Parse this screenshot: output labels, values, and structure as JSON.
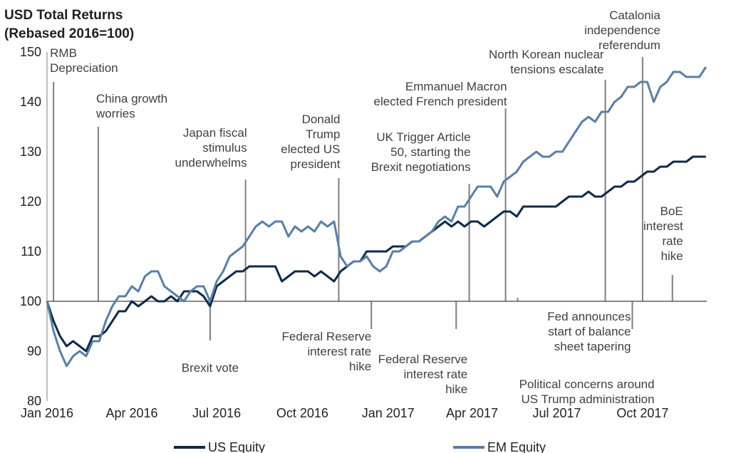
{
  "chart_data": {
    "type": "line",
    "title": "USD Total Returns",
    "subtitle": "(Rebased 2016=100)",
    "ylim": [
      80,
      150
    ],
    "yticks": [
      80,
      90,
      100,
      110,
      120,
      130,
      140,
      150
    ],
    "xlim": [
      "2016-01-01",
      "2017-12-15"
    ],
    "xticks": [
      {
        "date": "2016-01-01",
        "label": "Jan 2016"
      },
      {
        "date": "2016-04-01",
        "label": "Apr 2016"
      },
      {
        "date": "2016-07-01",
        "label": "Jul 2016"
      },
      {
        "date": "2016-10-01",
        "label": "Oct 2016"
      },
      {
        "date": "2017-01-01",
        "label": "Jan 2017"
      },
      {
        "date": "2017-04-01",
        "label": "Apr 2017"
      },
      {
        "date": "2017-07-01",
        "label": "Jul 2017"
      },
      {
        "date": "2017-10-01",
        "label": "Oct 2017"
      }
    ],
    "legend_position": "bottom",
    "series": [
      {
        "name": "US Equity",
        "color": "#0f2a4a",
        "points": [
          [
            "2016-01-01",
            100
          ],
          [
            "2016-01-08",
            96
          ],
          [
            "2016-01-15",
            93
          ],
          [
            "2016-01-22",
            91
          ],
          [
            "2016-01-29",
            92
          ],
          [
            "2016-02-05",
            91
          ],
          [
            "2016-02-12",
            90
          ],
          [
            "2016-02-19",
            93
          ],
          [
            "2016-02-26",
            93
          ],
          [
            "2016-03-04",
            94
          ],
          [
            "2016-03-11",
            96
          ],
          [
            "2016-03-18",
            98
          ],
          [
            "2016-03-25",
            98
          ],
          [
            "2016-04-01",
            100
          ],
          [
            "2016-04-08",
            99
          ],
          [
            "2016-04-15",
            100
          ],
          [
            "2016-04-22",
            101
          ],
          [
            "2016-04-29",
            100
          ],
          [
            "2016-05-06",
            100
          ],
          [
            "2016-05-13",
            101
          ],
          [
            "2016-05-20",
            100
          ],
          [
            "2016-05-27",
            102
          ],
          [
            "2016-06-03",
            102
          ],
          [
            "2016-06-10",
            102
          ],
          [
            "2016-06-17",
            101
          ],
          [
            "2016-06-24",
            99
          ],
          [
            "2016-07-01",
            103
          ],
          [
            "2016-07-08",
            104
          ],
          [
            "2016-07-15",
            105
          ],
          [
            "2016-07-22",
            106
          ],
          [
            "2016-07-29",
            106
          ],
          [
            "2016-08-05",
            107
          ],
          [
            "2016-08-12",
            107
          ],
          [
            "2016-08-19",
            107
          ],
          [
            "2016-08-26",
            107
          ],
          [
            "2016-09-02",
            107
          ],
          [
            "2016-09-09",
            104
          ],
          [
            "2016-09-16",
            105
          ],
          [
            "2016-09-23",
            106
          ],
          [
            "2016-09-30",
            106
          ],
          [
            "2016-10-07",
            106
          ],
          [
            "2016-10-14",
            105
          ],
          [
            "2016-10-21",
            106
          ],
          [
            "2016-10-28",
            105
          ],
          [
            "2016-11-04",
            104
          ],
          [
            "2016-11-11",
            106
          ],
          [
            "2016-11-18",
            107
          ],
          [
            "2016-11-25",
            108
          ],
          [
            "2016-12-02",
            108
          ],
          [
            "2016-12-09",
            110
          ],
          [
            "2016-12-16",
            110
          ],
          [
            "2016-12-23",
            110
          ],
          [
            "2016-12-30",
            110
          ],
          [
            "2017-01-06",
            111
          ],
          [
            "2017-01-13",
            111
          ],
          [
            "2017-01-20",
            111
          ],
          [
            "2017-01-27",
            112
          ],
          [
            "2017-02-03",
            112
          ],
          [
            "2017-02-10",
            113
          ],
          [
            "2017-02-17",
            114
          ],
          [
            "2017-02-24",
            115
          ],
          [
            "2017-03-03",
            116
          ],
          [
            "2017-03-10",
            115
          ],
          [
            "2017-03-17",
            116
          ],
          [
            "2017-03-24",
            115
          ],
          [
            "2017-03-31",
            116
          ],
          [
            "2017-04-07",
            116
          ],
          [
            "2017-04-14",
            115
          ],
          [
            "2017-04-21",
            116
          ],
          [
            "2017-04-28",
            117
          ],
          [
            "2017-05-05",
            118
          ],
          [
            "2017-05-12",
            118
          ],
          [
            "2017-05-19",
            117
          ],
          [
            "2017-05-26",
            119
          ],
          [
            "2017-06-02",
            119
          ],
          [
            "2017-06-09",
            119
          ],
          [
            "2017-06-16",
            119
          ],
          [
            "2017-06-23",
            119
          ],
          [
            "2017-06-30",
            119
          ],
          [
            "2017-07-07",
            120
          ],
          [
            "2017-07-14",
            121
          ],
          [
            "2017-07-21",
            121
          ],
          [
            "2017-07-28",
            121
          ],
          [
            "2017-08-04",
            122
          ],
          [
            "2017-08-11",
            121
          ],
          [
            "2017-08-18",
            121
          ],
          [
            "2017-08-25",
            122
          ],
          [
            "2017-09-01",
            123
          ],
          [
            "2017-09-08",
            123
          ],
          [
            "2017-09-15",
            124
          ],
          [
            "2017-09-22",
            124
          ],
          [
            "2017-09-29",
            125
          ],
          [
            "2017-10-06",
            126
          ],
          [
            "2017-10-13",
            126
          ],
          [
            "2017-10-20",
            127
          ],
          [
            "2017-10-27",
            127
          ],
          [
            "2017-11-03",
            128
          ],
          [
            "2017-11-10",
            128
          ],
          [
            "2017-11-17",
            128
          ],
          [
            "2017-11-24",
            129
          ],
          [
            "2017-12-01",
            129
          ],
          [
            "2017-12-08",
            129
          ]
        ]
      },
      {
        "name": "EM Equity",
        "color": "#5a7fa6",
        "points": [
          [
            "2016-01-01",
            100
          ],
          [
            "2016-01-08",
            94
          ],
          [
            "2016-01-15",
            90
          ],
          [
            "2016-01-22",
            87
          ],
          [
            "2016-01-29",
            89
          ],
          [
            "2016-02-05",
            90
          ],
          [
            "2016-02-12",
            89
          ],
          [
            "2016-02-19",
            92
          ],
          [
            "2016-02-26",
            92
          ],
          [
            "2016-03-04",
            96
          ],
          [
            "2016-03-11",
            99
          ],
          [
            "2016-03-18",
            101
          ],
          [
            "2016-03-25",
            101
          ],
          [
            "2016-04-01",
            103
          ],
          [
            "2016-04-08",
            102
          ],
          [
            "2016-04-15",
            105
          ],
          [
            "2016-04-22",
            106
          ],
          [
            "2016-04-29",
            106
          ],
          [
            "2016-05-06",
            103
          ],
          [
            "2016-05-13",
            102
          ],
          [
            "2016-05-20",
            101
          ],
          [
            "2016-05-27",
            100
          ],
          [
            "2016-06-03",
            102
          ],
          [
            "2016-06-10",
            103
          ],
          [
            "2016-06-17",
            103
          ],
          [
            "2016-06-24",
            100
          ],
          [
            "2016-07-01",
            104
          ],
          [
            "2016-07-08",
            106
          ],
          [
            "2016-07-15",
            109
          ],
          [
            "2016-07-22",
            110
          ],
          [
            "2016-07-29",
            111
          ],
          [
            "2016-08-05",
            113
          ],
          [
            "2016-08-12",
            115
          ],
          [
            "2016-08-19",
            116
          ],
          [
            "2016-08-26",
            115
          ],
          [
            "2016-09-02",
            116
          ],
          [
            "2016-09-09",
            116
          ],
          [
            "2016-09-16",
            113
          ],
          [
            "2016-09-23",
            115
          ],
          [
            "2016-09-30",
            114
          ],
          [
            "2016-10-07",
            115
          ],
          [
            "2016-10-14",
            114
          ],
          [
            "2016-10-21",
            116
          ],
          [
            "2016-10-28",
            115
          ],
          [
            "2016-11-04",
            116
          ],
          [
            "2016-11-11",
            109
          ],
          [
            "2016-11-18",
            107
          ],
          [
            "2016-11-25",
            108
          ],
          [
            "2016-12-02",
            108
          ],
          [
            "2016-12-09",
            109
          ],
          [
            "2016-12-16",
            107
          ],
          [
            "2016-12-23",
            106
          ],
          [
            "2016-12-30",
            107
          ],
          [
            "2017-01-06",
            110
          ],
          [
            "2017-01-13",
            110
          ],
          [
            "2017-01-20",
            111
          ],
          [
            "2017-01-27",
            112
          ],
          [
            "2017-02-03",
            112
          ],
          [
            "2017-02-10",
            113
          ],
          [
            "2017-02-17",
            114
          ],
          [
            "2017-02-24",
            116
          ],
          [
            "2017-03-03",
            117
          ],
          [
            "2017-03-10",
            116
          ],
          [
            "2017-03-17",
            119
          ],
          [
            "2017-03-24",
            119
          ],
          [
            "2017-03-31",
            121
          ],
          [
            "2017-04-07",
            123
          ],
          [
            "2017-04-14",
            123
          ],
          [
            "2017-04-21",
            123
          ],
          [
            "2017-04-28",
            121
          ],
          [
            "2017-05-05",
            124
          ],
          [
            "2017-05-12",
            125
          ],
          [
            "2017-05-19",
            126
          ],
          [
            "2017-05-26",
            128
          ],
          [
            "2017-06-02",
            129
          ],
          [
            "2017-06-09",
            130
          ],
          [
            "2017-06-16",
            129
          ],
          [
            "2017-06-23",
            129
          ],
          [
            "2017-06-30",
            130
          ],
          [
            "2017-07-07",
            130
          ],
          [
            "2017-07-14",
            132
          ],
          [
            "2017-07-21",
            134
          ],
          [
            "2017-07-28",
            136
          ],
          [
            "2017-08-04",
            137
          ],
          [
            "2017-08-11",
            136
          ],
          [
            "2017-08-18",
            138
          ],
          [
            "2017-08-25",
            138
          ],
          [
            "2017-09-01",
            140
          ],
          [
            "2017-09-08",
            141
          ],
          [
            "2017-09-15",
            143
          ],
          [
            "2017-09-22",
            143
          ],
          [
            "2017-09-29",
            144
          ],
          [
            "2017-10-06",
            144
          ],
          [
            "2017-10-13",
            140
          ],
          [
            "2017-10-20",
            143
          ],
          [
            "2017-10-27",
            144
          ],
          [
            "2017-11-03",
            146
          ],
          [
            "2017-11-10",
            146
          ],
          [
            "2017-11-17",
            145
          ],
          [
            "2017-11-24",
            145
          ],
          [
            "2017-12-01",
            145
          ],
          [
            "2017-12-08",
            147
          ]
        ]
      }
    ],
    "annotations": [
      {
        "date": "2016-01-08",
        "text": [
          "RMB",
          "Depreciation"
        ],
        "position": "above"
      },
      {
        "date": "2016-02-25",
        "text": [
          "China growth",
          "worries"
        ],
        "position": "above"
      },
      {
        "date": "2016-06-24",
        "text": [
          "Brexit vote"
        ],
        "position": "below"
      },
      {
        "date": "2016-08-01",
        "text": [
          "Japan fiscal",
          "stimulus",
          "underwhelms"
        ],
        "position": "above"
      },
      {
        "date": "2016-11-09",
        "text": [
          "Donald",
          "Trump",
          "elected US",
          "president"
        ],
        "position": "above"
      },
      {
        "date": "2016-12-14",
        "text": [
          "Federal Reserve",
          "interest rate",
          "hike"
        ],
        "position": "below"
      },
      {
        "date": "2017-03-15",
        "text": [
          "Federal Reserve",
          "interest rate",
          "hike"
        ],
        "position": "below"
      },
      {
        "date": "2017-03-29",
        "text": [
          "UK Trigger Article",
          "50, starting the",
          "Brexit negotiations"
        ],
        "position": "above"
      },
      {
        "date": "2017-05-07",
        "text": [
          "Emmanuel Macron",
          "elected French president"
        ],
        "position": "above"
      },
      {
        "date": "2017-05-20",
        "text": [
          "Political concerns around",
          "US Trump administration"
        ],
        "position": "below"
      },
      {
        "date": "2017-08-22",
        "text": [
          "North Korean nuclear",
          "tensions escalate"
        ],
        "position": "above"
      },
      {
        "date": "2017-09-20",
        "text": [
          "Fed announces",
          "start of balance",
          "sheet tapering"
        ],
        "position": "below"
      },
      {
        "date": "2017-10-01",
        "text": [
          "Catalonia",
          "independence",
          "referendum"
        ],
        "position": "above"
      },
      {
        "date": "2017-11-02",
        "text": [
          "BoE",
          "interest",
          "rate",
          "hike"
        ],
        "position": "above"
      }
    ]
  }
}
